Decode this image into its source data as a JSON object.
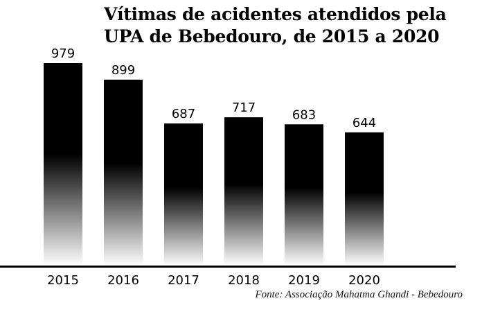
{
  "chart_data": {
    "type": "bar",
    "title_lines": [
      "Vítimas de acidentes atendidos pela",
      "UPA de Bebedouro, de 2015 a 2020"
    ],
    "categories": [
      "2015",
      "2016",
      "2017",
      "2018",
      "2019",
      "2020"
    ],
    "values": [
      979,
      899,
      687,
      717,
      683,
      644
    ],
    "data_labels": [
      "979",
      "899",
      "687",
      "717",
      "683",
      "644"
    ],
    "xlabel": "",
    "ylabel": "",
    "ylim": [
      0,
      979
    ],
    "grid": false,
    "source": "Fonte: Associação Mahatma Ghandi - Bebedouro",
    "bar_color_top": "#000000",
    "bar_color_bottom": "#ffffff"
  }
}
